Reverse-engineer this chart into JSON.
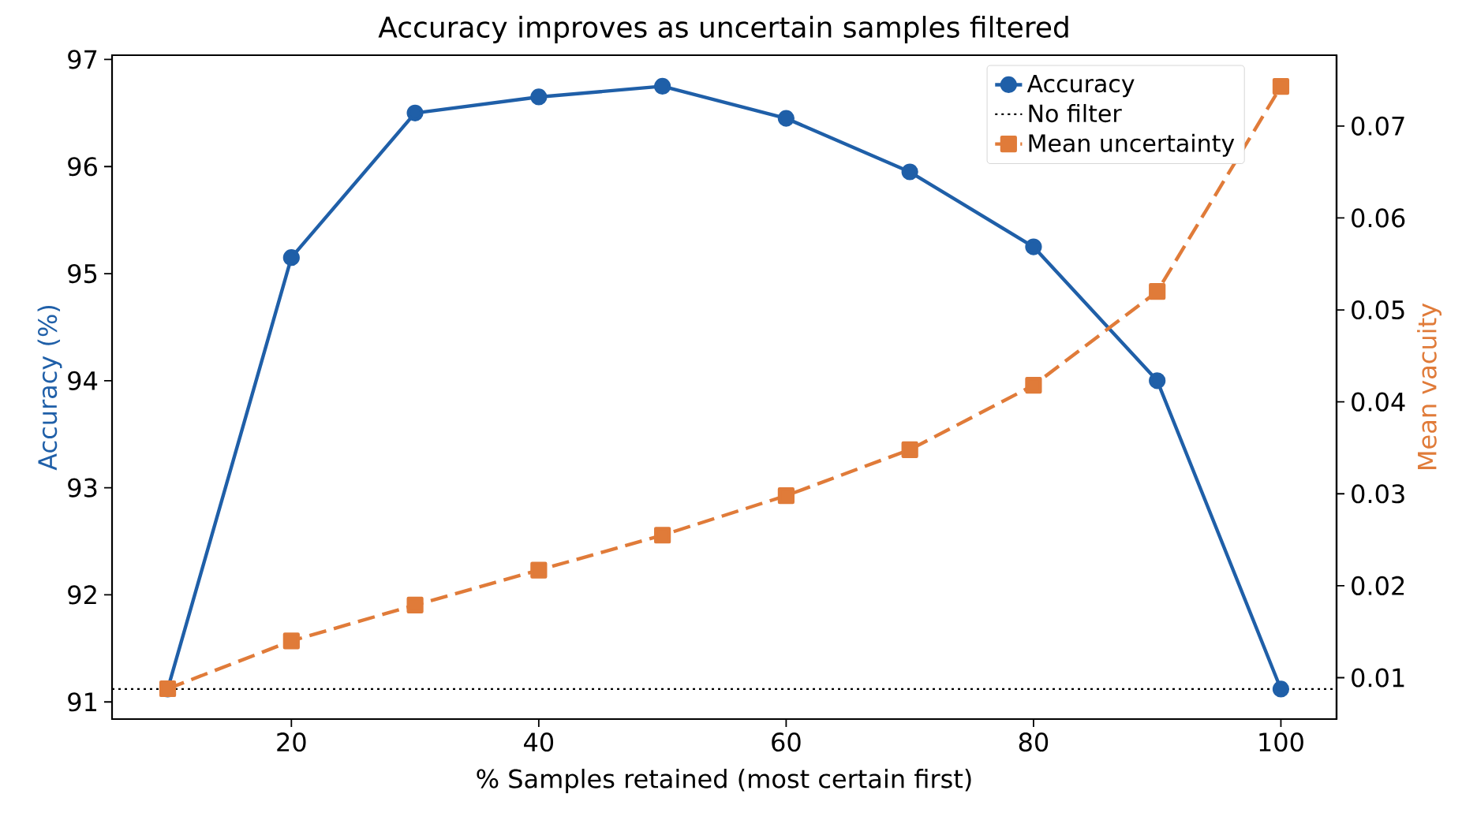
{
  "chart_data": {
    "type": "line",
    "title": "Accuracy improves as uncertain samples filtered",
    "xlabel": "% Samples retained (most certain first)",
    "ylabel": "Accuracy (%)",
    "y2label": "Mean vacuity",
    "x": [
      10,
      20,
      30,
      40,
      50,
      60,
      70,
      80,
      90,
      100
    ],
    "series": [
      {
        "name": "Accuracy",
        "color": "#1f5fa8",
        "values": [
          91.12,
          95.15,
          96.5,
          96.65,
          96.75,
          96.45,
          95.95,
          95.25,
          94.0,
          91.12
        ],
        "marker": "circle",
        "line_style": "solid"
      },
      {
        "name": "Mean uncertainty",
        "color": "#e07b39",
        "values": [
          0.0088,
          0.014,
          0.0179,
          0.0217,
          0.0255,
          0.0298,
          0.0348,
          0.0418,
          0.052,
          0.0743
        ],
        "axis": "y2",
        "marker": "square",
        "line_style": "dashed"
      }
    ],
    "xlim": [
      5.5,
      104.5
    ],
    "xticks": [
      20,
      40,
      60,
      80,
      100
    ],
    "ylim": [
      90.84,
      97.04
    ],
    "yticks": [
      91,
      92,
      93,
      94,
      95,
      96,
      97
    ],
    "y2lim": [
      0.0055,
      0.0777
    ],
    "y2ticks": [
      0.01,
      0.02,
      0.03,
      0.04,
      0.05,
      0.06,
      0.07
    ],
    "ref_lines": [
      {
        "axis": "y",
        "value": 91.12,
        "label": "No filter",
        "color": "#000000",
        "line_style": "dotted"
      }
    ],
    "legend": "top right",
    "grid": false
  }
}
